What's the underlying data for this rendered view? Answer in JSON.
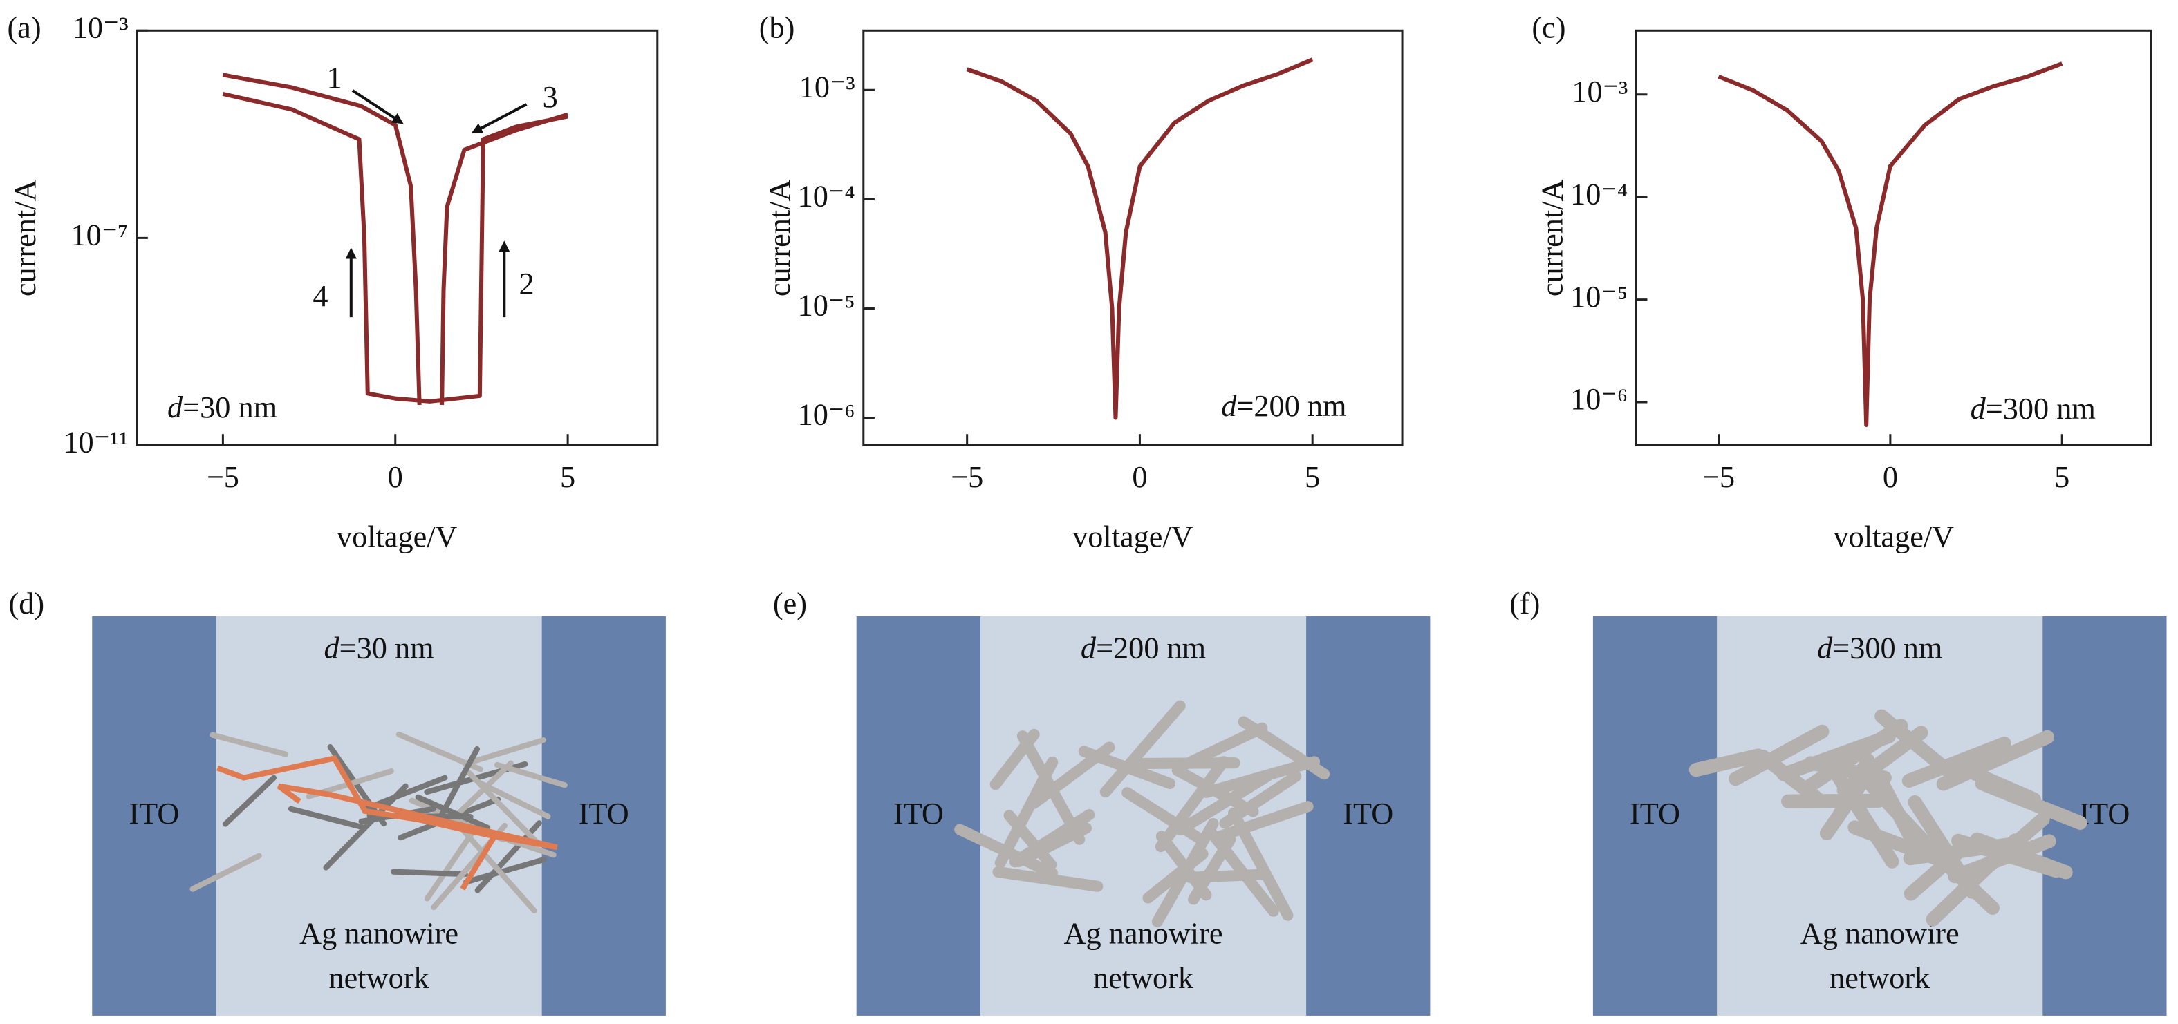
{
  "chart_data": [
    {
      "type": "line",
      "panel": "(a)",
      "xlabel": "voltage/V",
      "ylabel": "current/A",
      "log_y": true,
      "color": "#8b2a2a",
      "xlim": [
        -7.5,
        7.6
      ],
      "ylim": [
        1e-11,
        0.001
      ],
      "xticks": [
        {
          "value": -5,
          "label": "−5"
        },
        0,
        5
      ],
      "yticks": [
        {
          "value": 0.001,
          "label": "10⁻³"
        },
        {
          "value": 1e-07,
          "label": "10⁻⁷"
        },
        {
          "value": 1e-11,
          "label": "10⁻¹¹"
        }
      ],
      "series": [
        {
          "x": [
            -5,
            -3,
            -1,
            0,
            0.45,
            0.6,
            0.7
          ],
          "values": [
            0.00014,
            8e-05,
            3.5e-05,
            1.5e-05,
            1e-06,
            1e-08,
            6e-11
          ]
        },
        {
          "x": [
            -5,
            -3,
            -1.05,
            -0.9,
            -0.8,
            0,
            1,
            2.45,
            2.55,
            3.5,
            5
          ],
          "values": [
            6e-05,
            3e-05,
            8e-06,
            1e-07,
            1e-10,
            8e-11,
            7e-11,
            9e-11,
            8e-06,
            1.4e-05,
            2.2e-05
          ]
        },
        {
          "x": [
            5,
            3.5,
            2,
            1.5,
            1.4,
            1.35
          ],
          "values": [
            2.4e-05,
            1.2e-05,
            5e-06,
            4e-07,
            1e-08,
            6e-11
          ]
        }
      ],
      "annotations": [
        "1",
        "2",
        "3",
        "4"
      ],
      "label": {
        "var": "d",
        "rest": "=30 nm"
      }
    },
    {
      "type": "line",
      "panel": "(b)",
      "xlabel": "voltage/V",
      "ylabel": "current/A",
      "log_y": true,
      "color": "#8b2a2a",
      "xlim": [
        -8.0,
        7.6
      ],
      "ylim": [
        5.6e-07,
        0.0035
      ],
      "xticks": [
        {
          "value": -5,
          "label": "−5"
        },
        0,
        5
      ],
      "yticks": [
        {
          "value": 0.001,
          "label": "10⁻³"
        },
        {
          "value": 0.0001,
          "label": "10⁻⁴"
        },
        {
          "value": 1e-05,
          "label": "10⁻⁵"
        },
        {
          "value": 1e-06,
          "label": "10⁻⁶"
        }
      ],
      "series": [
        {
          "x": [
            -5,
            -4,
            -3,
            -2,
            -1.5,
            -1,
            -0.8,
            -0.7,
            -0.6,
            -0.4,
            0,
            1,
            2,
            3,
            4,
            5
          ],
          "values": [
            0.00155,
            0.0012,
            0.0008,
            0.0004,
            0.0002,
            5e-05,
            1e-05,
            1e-06,
            1e-05,
            5e-05,
            0.0002,
            0.0005,
            0.0008,
            0.0011,
            0.0014,
            0.0019
          ]
        }
      ],
      "label": {
        "var": "d",
        "rest": "=200 nm"
      }
    },
    {
      "type": "line",
      "panel": "(c)",
      "xlabel": "voltage/V",
      "ylabel": "current/A",
      "log_y": true,
      "color": "#8b2a2a",
      "xlim": [
        -7.4,
        7.6
      ],
      "ylim": [
        3.8e-07,
        0.0042
      ],
      "xticks": [
        {
          "value": -5,
          "label": "−5"
        },
        0,
        5
      ],
      "yticks": [
        {
          "value": 0.001,
          "label": "10⁻³"
        },
        {
          "value": 0.0001,
          "label": "10⁻⁴"
        },
        {
          "value": 1e-05,
          "label": "10⁻⁵"
        },
        {
          "value": 1e-06,
          "label": "10⁻⁶"
        }
      ],
      "series": [
        {
          "x": [
            -5,
            -4,
            -3,
            -2,
            -1.5,
            -1,
            -0.8,
            -0.7,
            -0.6,
            -0.4,
            0,
            1,
            2,
            3,
            4,
            5
          ],
          "values": [
            0.0015,
            0.0011,
            0.0007,
            0.00035,
            0.00018,
            5e-05,
            1e-05,
            6e-07,
            1e-05,
            5e-05,
            0.0002,
            0.0005,
            0.0009,
            0.0012,
            0.0015,
            0.002
          ]
        }
      ],
      "label": {
        "var": "d",
        "rest": "=300 nm"
      }
    }
  ],
  "diagrams": [
    {
      "panel": "(d)",
      "thickness": {
        "var": "d",
        "rest": "=30 nm"
      },
      "left": "ITO",
      "right": "ITO",
      "network": [
        "Ag nanowire",
        "network"
      ]
    },
    {
      "panel": "(e)",
      "thickness": {
        "var": "d",
        "rest": "=200 nm"
      },
      "left": "ITO",
      "right": "ITO",
      "network": [
        "Ag nanowire",
        "network"
      ]
    },
    {
      "panel": "(f)",
      "thickness": {
        "var": "d",
        "rest": "=300 nm"
      },
      "left": "ITO",
      "right": "ITO",
      "network": [
        "Ag nanowire",
        "network"
      ]
    }
  ]
}
